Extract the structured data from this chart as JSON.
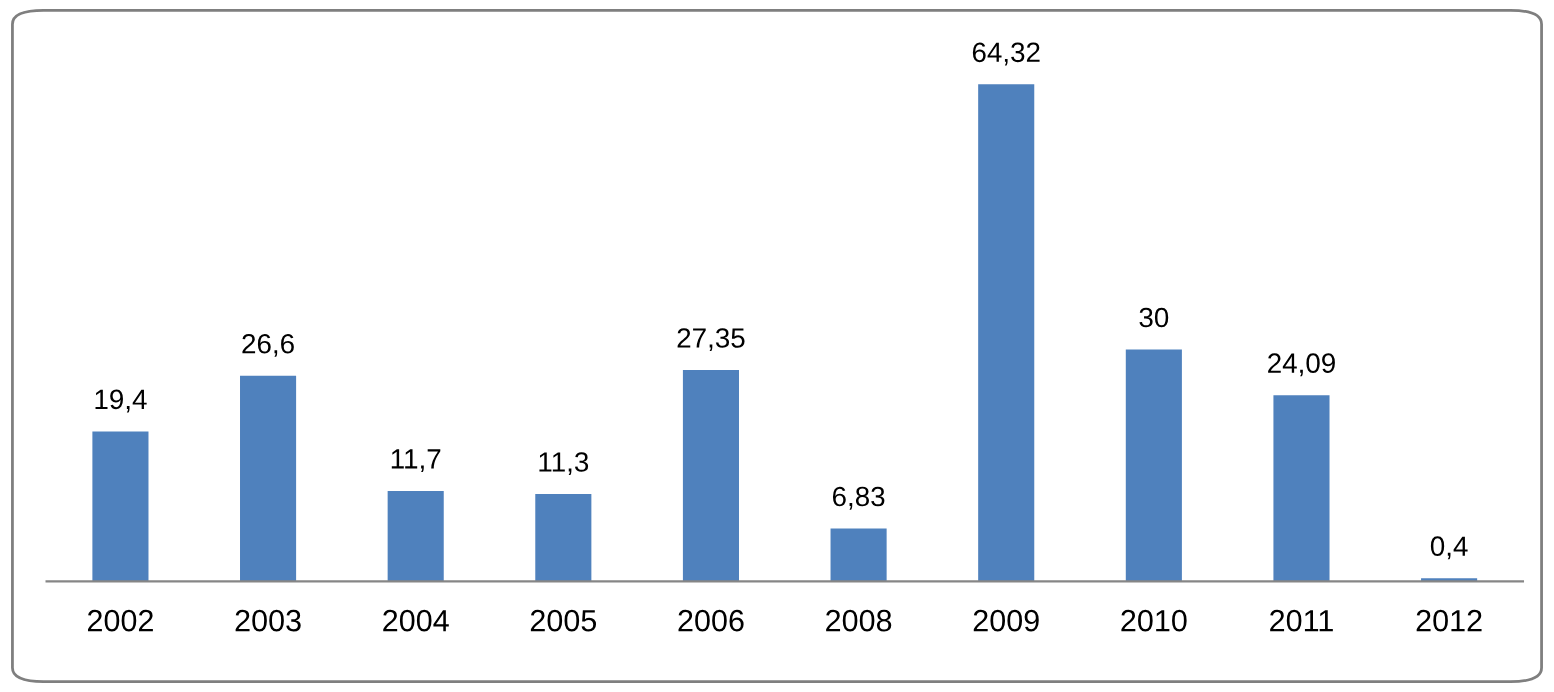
{
  "chart_data": {
    "type": "bar",
    "categories": [
      "2002",
      "2003",
      "2004",
      "2005",
      "2006",
      "2008",
      "2009",
      "2010",
      "2011",
      "2012"
    ],
    "values": [
      19.4,
      26.6,
      11.7,
      11.3,
      27.35,
      6.83,
      64.32,
      30,
      24.09,
      0.4
    ],
    "value_labels": [
      "19,4",
      "26,6",
      "11,7",
      "11,3",
      "27,35",
      "6,83",
      "64,32",
      "30",
      "24,09",
      "0,4"
    ],
    "color": "#4f81bd",
    "grid": false,
    "legend": false
  }
}
